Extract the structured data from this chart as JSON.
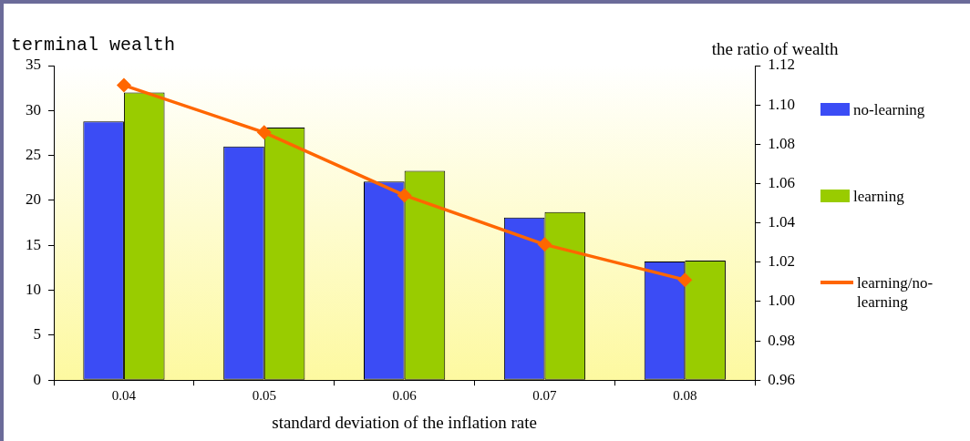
{
  "chart_data": {
    "type": "bar",
    "xlabel": "standard deviation of the inflation rate",
    "ylabel": "terminal wealth",
    "y2label": "the ratio of wealth",
    "categories": [
      "0.04",
      "0.05",
      "0.06",
      "0.07",
      "0.08"
    ],
    "series": [
      {
        "name": "no-learning",
        "color": "#3b4cf5",
        "values": [
          28.8,
          26.0,
          22.1,
          18.1,
          13.2
        ]
      },
      {
        "name": "learning",
        "color": "#99cc00",
        "values": [
          32.0,
          28.1,
          23.3,
          18.7,
          13.3
        ]
      },
      {
        "name": "learning/no-learning",
        "type": "line",
        "axis": "y2",
        "color": "#ff6600",
        "values": [
          1.11,
          1.086,
          1.054,
          1.029,
          1.011
        ]
      }
    ],
    "ylim": [
      0,
      35
    ],
    "yticks": [
      0,
      5,
      10,
      15,
      20,
      25,
      30,
      35
    ],
    "y2lim": [
      0.96,
      1.12
    ],
    "y2ticks": [
      {
        "value": 0.96,
        "label": "0.96"
      },
      {
        "value": 0.98,
        "label": "0.98"
      },
      {
        "value": 1.0,
        "label": "1.00"
      },
      {
        "value": 1.02,
        "label": "1.02"
      },
      {
        "value": 1.04,
        "label": "1.04"
      },
      {
        "value": 1.06,
        "label": "1.06"
      },
      {
        "value": 1.08,
        "label": "1.08"
      },
      {
        "value": 1.1,
        "label": "1.10"
      },
      {
        "value": 1.12,
        "label": "1.12"
      }
    ],
    "grid": false,
    "legend": "right",
    "marker": "diamond",
    "line_style": "solid"
  }
}
